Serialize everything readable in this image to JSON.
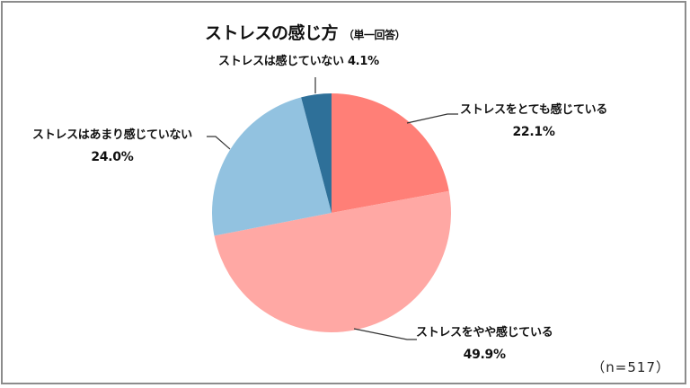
{
  "chart_data": {
    "type": "pie",
    "title": "ストレスの感じ方",
    "subtitle": "（単一回答）",
    "note": "（n=517）",
    "start_angle": "12 o'clock, clockwise",
    "slices": [
      {
        "label": "ストレスをとても感じている",
        "value": 22.1,
        "display": "22.1%",
        "color": "#FF7F77"
      },
      {
        "label": "ストレスをやや感じている",
        "value": 49.9,
        "display": "49.9%",
        "color": "#FFA8A4"
      },
      {
        "label": "ストレスはあまり感じていない",
        "value": 24.0,
        "display": "24.0%",
        "color": "#92C2E0"
      },
      {
        "label": "ストレスは感じていない",
        "value": 4.1,
        "display": "4.1%",
        "color": "#2E7099"
      }
    ]
  }
}
